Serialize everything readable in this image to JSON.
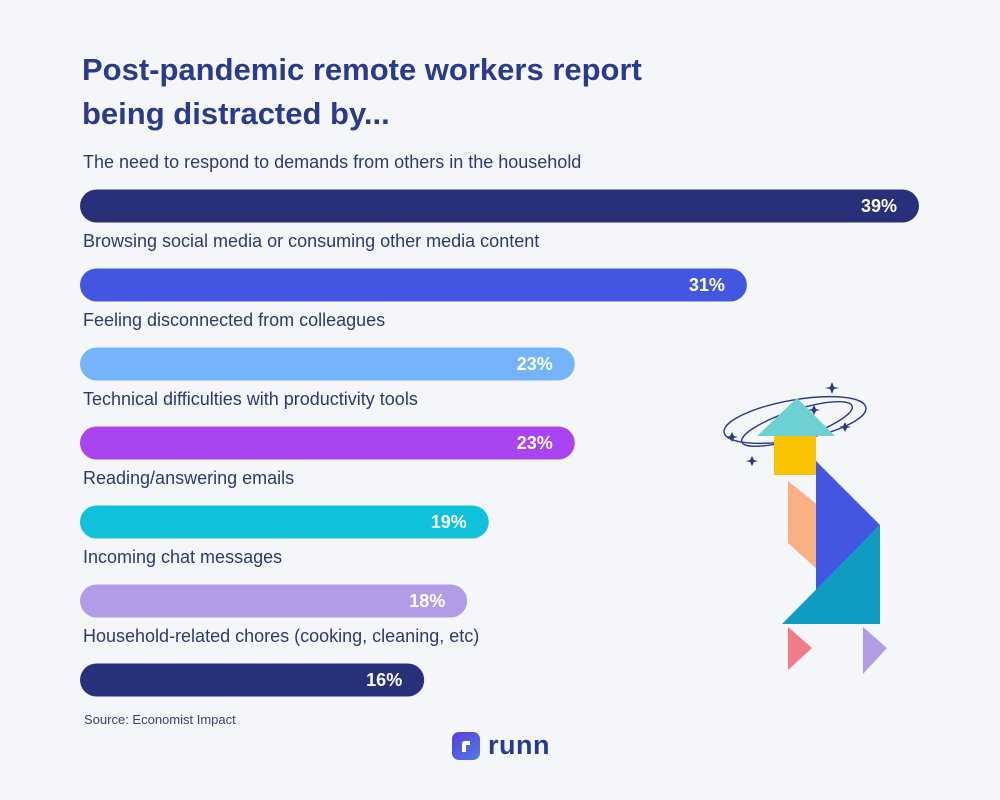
{
  "header": {
    "title_line1": "Post-pandemic remote workers report",
    "title_line2": "being distracted by..."
  },
  "chart_data": {
    "type": "bar",
    "orientation": "horizontal",
    "title": "Post-pandemic remote workers report being distracted by...",
    "categories": [
      "The need to respond to demands from others in the household",
      "Browsing social media or consuming other media content",
      "Feeling disconnected from colleagues",
      "Technical difficulties with productivity tools",
      "Reading/answering emails",
      "Incoming chat messages",
      "Household-related chores (cooking, cleaning, etc)"
    ],
    "values": [
      39,
      31,
      23,
      23,
      19,
      18,
      16
    ],
    "value_labels": [
      "39%",
      "31%",
      "23%",
      "23%",
      "19%",
      "18%",
      "16%"
    ],
    "unit": "%",
    "colors": [
      "#28307a",
      "#4356df",
      "#75b4fb",
      "#a944f0",
      "#0fc1d9",
      "#b19de6",
      "#28307a"
    ],
    "xlim": [
      0,
      39
    ],
    "grid": false,
    "legend": "none"
  },
  "footer": {
    "source": "Source: Economist Impact",
    "brand": "runn",
    "brand_logo_icon": "runn-r-icon"
  }
}
